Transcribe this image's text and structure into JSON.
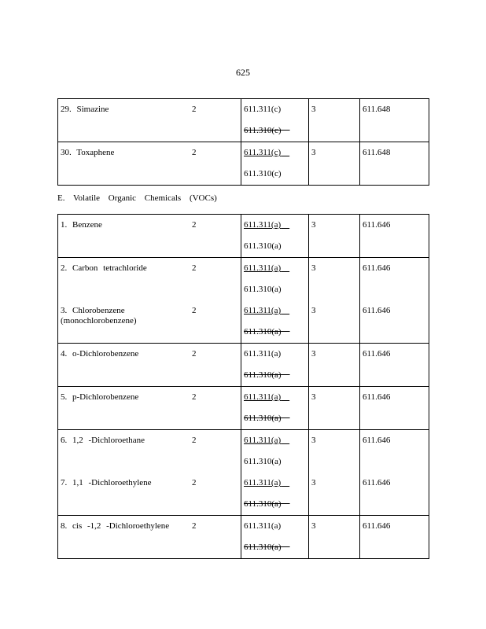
{
  "page_number": "625",
  "section_heading": "E. Volatile Organic Chemicals (VOCs)",
  "table1": [
    [
      {
        "name": "29.  Simazine",
        "count": "2",
        "refs": [
          {
            "text": "611.311(c)",
            "style": "plain"
          },
          {
            "text": "611.310(c)",
            "style": "del"
          }
        ],
        "tier": "3",
        "section": "611.648"
      }
    ],
    [
      {
        "name": "30. Toxaphene",
        "count": "2",
        "refs": [
          {
            "text": "611.311(c)",
            "style": "ins"
          },
          {
            "text": "611.310(c)",
            "style": "plain"
          }
        ],
        "tier": "3",
        "section": "611.648"
      }
    ]
  ],
  "table2": [
    [
      {
        "name": "1.  Benzene",
        "count": "2",
        "refs": [
          {
            "text": "611.311(a)",
            "style": "ins"
          },
          {
            "text": "611.310(a)",
            "style": "plain"
          }
        ],
        "tier": "3",
        "section": "611.646"
      }
    ],
    [
      {
        "name": "2.  Carbon   tetrachloride",
        "count": "2",
        "refs": [
          {
            "text": "611.311(a)",
            "style": "ins"
          },
          {
            "text": "611.310(a)",
            "style": "plain"
          }
        ],
        "tier": "3",
        "section": "611.646"
      },
      {
        "name": "3.  Chlorobenzene (monochlorobenzene)",
        "count": "2",
        "refs": [
          {
            "text": "611.311(a)",
            "style": "ins"
          },
          {
            "text": "611.310(a)",
            "style": "del"
          }
        ],
        "tier": "3",
        "section": "611.646"
      }
    ],
    [
      {
        "name": "4.  o-Dichlorobenzene",
        "count": "2",
        "refs": [
          {
            "text": "611.311(a)",
            "style": "plain"
          },
          {
            "text": "611.310(a)",
            "style": "del"
          }
        ],
        "tier": "3",
        "section": "611.646"
      }
    ],
    [
      {
        "name": "5.  p-Dichlorobenzene",
        "count": "2",
        "refs": [
          {
            "text": "611.311(a)",
            "style": "ins"
          },
          {
            "text": "611.310(a)",
            "style": "del"
          }
        ],
        "tier": "3",
        "section": "611.646"
      }
    ],
    [
      {
        "name": "6.  1,2 -Dichloroethane",
        "count": "2",
        "refs": [
          {
            "text": "611.311(a)",
            "style": "ins"
          },
          {
            "text": "611.310(a)",
            "style": "plain"
          }
        ],
        "tier": "3",
        "section": "611.646"
      },
      {
        "name": "7.  1,1 -Dichloroethylene",
        "count": "2",
        "refs": [
          {
            "text": "611.311(a)",
            "style": "ins"
          },
          {
            "text": "611.310(a)",
            "style": "del"
          }
        ],
        "tier": "3",
        "section": "611.646"
      }
    ],
    [
      {
        "name": "8. cis  -1,2 -Dichloroethylene",
        "count": "2",
        "refs": [
          {
            "text": "611.311(a)",
            "style": "plain"
          },
          {
            "text": "611.310(a)",
            "style": "del"
          }
        ],
        "tier": "3",
        "section": "611.646"
      }
    ]
  ]
}
